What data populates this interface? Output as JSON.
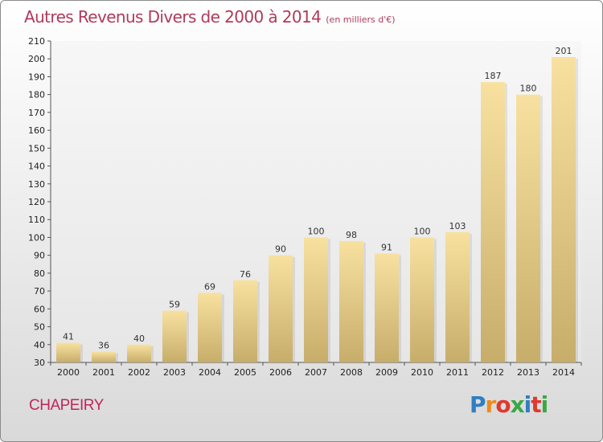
{
  "title": "Autres Revenus Divers de 2000 à 2014",
  "title_unit": "(en milliers d'€)",
  "commune": "CHAPEIRY",
  "brand": {
    "letters": [
      "P",
      "r",
      "o",
      "x",
      "i",
      "t",
      "i"
    ],
    "colors": [
      "#2f7fc1",
      "#f08a1c",
      "#e0382e",
      "#3aa844",
      "#2f7fc1",
      "#e0382e",
      "#3aa844"
    ]
  },
  "colors": {
    "title": "#b03a5a",
    "commune": "#c0265a",
    "bar_light": "#f8e1a0",
    "bar_dark": "#c7ad6a"
  },
  "chart_data": {
    "type": "bar",
    "categories": [
      "2000",
      "2001",
      "2002",
      "2003",
      "2004",
      "2005",
      "2006",
      "2007",
      "2008",
      "2009",
      "2010",
      "2011",
      "2012",
      "2013",
      "2014"
    ],
    "values": [
      41,
      36,
      40,
      59,
      69,
      76,
      90,
      100,
      98,
      91,
      100,
      103,
      187,
      180,
      201
    ],
    "ylim": [
      30,
      210
    ],
    "yticks": [
      30,
      40,
      50,
      60,
      70,
      80,
      90,
      100,
      110,
      120,
      130,
      140,
      150,
      160,
      170,
      180,
      190,
      200,
      210
    ],
    "grid": false,
    "xlabel": "",
    "ylabel": ""
  }
}
